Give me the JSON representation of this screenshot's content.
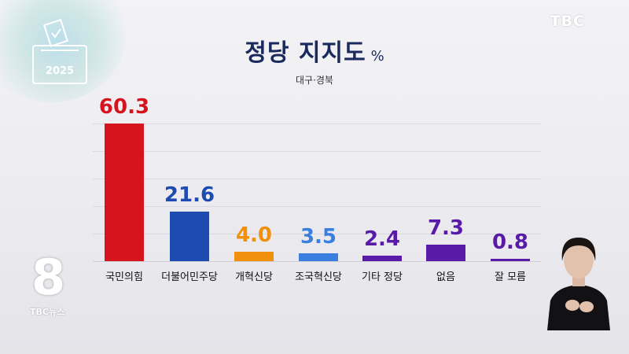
{
  "badge": {
    "year": "2025"
  },
  "channel": {
    "logo": "TBC",
    "news_logo": "TBC뉴스",
    "program_number": "8"
  },
  "header": {
    "title": "정당 지지도",
    "unit": "%",
    "region": "대구·경북"
  },
  "colors": {
    "title": "#1b2a5c",
    "ppp": "#d6141d",
    "democratic": "#1e4bb0",
    "reform": "#f0900c",
    "rebuilding": "#3a7fe0",
    "purple": "#5a1aa8"
  },
  "chart_data": {
    "type": "bar",
    "title": "정당 지지도",
    "subtitle": "대구·경북",
    "unit": "%",
    "categories": [
      "국민의힘",
      "더불어민주당",
      "개혁신당",
      "조국혁신당",
      "기타 정당",
      "없음",
      "잘 모름"
    ],
    "values": [
      60.3,
      21.6,
      4.0,
      3.5,
      2.4,
      7.3,
      0.8
    ],
    "labels": [
      "60.3",
      "21.6",
      "4.0",
      "3.5",
      "2.4",
      "7.3",
      "0.8"
    ],
    "bar_colors": [
      "#d6141d",
      "#1e4bb0",
      "#f0900c",
      "#3a7fe0",
      "#5a1aa8",
      "#5a1aa8",
      "#5a1aa8"
    ],
    "ylim": [
      0,
      70
    ],
    "xlabel": "",
    "ylabel": "",
    "grid": true,
    "legend": "none"
  }
}
